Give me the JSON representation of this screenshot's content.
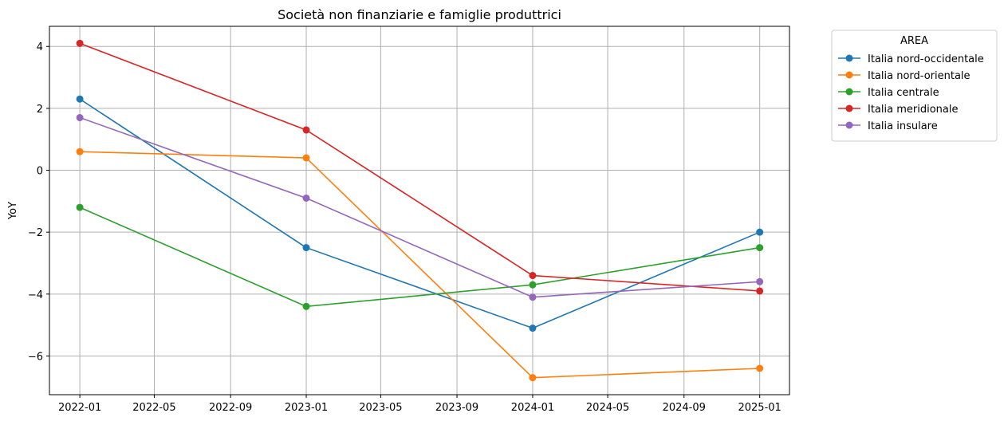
{
  "chart_data": {
    "type": "line",
    "title": "Società non finanziarie e famiglie produttrici",
    "xlabel": "",
    "ylabel": "YoY",
    "x": [
      "2022-01",
      "2023-01",
      "2024-01",
      "2025-01"
    ],
    "x_ticks": [
      "2022-01",
      "2022-05",
      "2022-09",
      "2023-01",
      "2023-05",
      "2023-09",
      "2024-01",
      "2024-05",
      "2024-09",
      "2025-01"
    ],
    "y_ticks": [
      4,
      2,
      0,
      -2,
      -4,
      -6
    ],
    "y_tick_labels": [
      "4",
      "2",
      "0",
      "−2",
      "−4",
      "−6"
    ],
    "ylim": [
      -7.25,
      4.65
    ],
    "xlim": [
      "2021-11-13",
      "2025-02-18"
    ],
    "grid": true,
    "legend": {
      "title": "AREA",
      "placement": "outside top-right"
    },
    "series": [
      {
        "name": "Italia nord-occidentale",
        "color": "#1f77b4",
        "values": [
          2.3,
          -2.5,
          -5.1,
          -2.0
        ]
      },
      {
        "name": "Italia nord-orientale",
        "color": "#ff7f0e",
        "values": [
          0.6,
          0.4,
          -6.7,
          -6.4
        ]
      },
      {
        "name": "Italia centrale",
        "color": "#2ca02c",
        "values": [
          -1.2,
          -4.4,
          -3.7,
          -2.5
        ]
      },
      {
        "name": "Italia meridionale",
        "color": "#d62728",
        "values": [
          4.1,
          1.3,
          -3.4,
          -3.9
        ]
      },
      {
        "name": "Italia insulare",
        "color": "#9467bd",
        "values": [
          1.7,
          -0.9,
          -4.1,
          -3.6
        ]
      }
    ]
  }
}
